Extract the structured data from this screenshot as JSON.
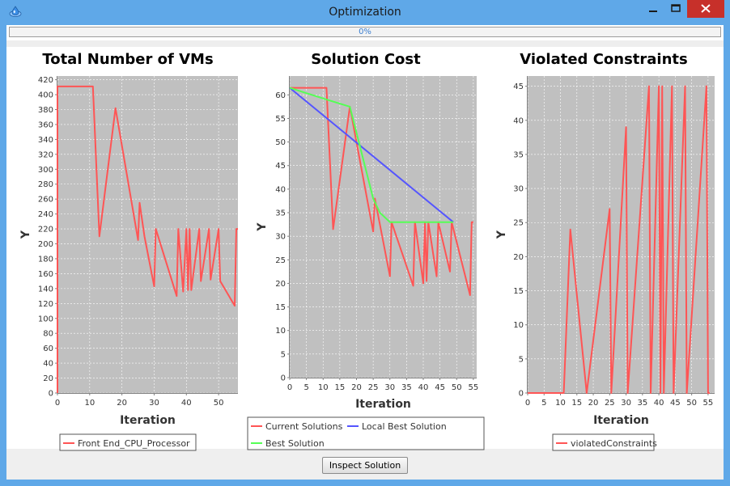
{
  "window": {
    "title": "Optimization",
    "icons": {
      "app": "app-droplet-icon",
      "minimize": "minimize-icon",
      "maximize": "maximize-icon",
      "close": "close-icon"
    },
    "colors": {
      "frame": "#5fa8e8",
      "close": "#c7302a",
      "plot_bg": "#c0c0c0"
    }
  },
  "progress": {
    "text": "0%",
    "value": 0
  },
  "footer": {
    "inspect_label": "Inspect Solution"
  },
  "chart_data": [
    {
      "id": "vms",
      "type": "line",
      "title": "Total Number of VMs",
      "xlabel": "Iteration",
      "ylabel": "Y",
      "xlim": [
        0,
        56
      ],
      "ylim": [
        0,
        425
      ],
      "xticks": [
        0,
        10,
        20,
        30,
        40,
        50
      ],
      "yticks": [
        0,
        20,
        40,
        60,
        80,
        100,
        120,
        140,
        160,
        180,
        200,
        220,
        240,
        260,
        280,
        300,
        320,
        340,
        360,
        380,
        400,
        420
      ],
      "grid": true,
      "legend_position": "bottom",
      "series": [
        {
          "name": "Front End_CPU_Processor",
          "color": "#ff5555",
          "x": [
            0,
            0,
            11,
            13,
            18,
            25,
            25.5,
            27,
            30,
            30.5,
            37,
            37.5,
            39,
            40,
            40.5,
            41,
            41.5,
            44,
            44.5,
            47,
            47.5,
            50,
            50.5,
            55,
            55.5,
            56
          ],
          "y": [
            0,
            411,
            411,
            210,
            382,
            205,
            255,
            210,
            143,
            220,
            130,
            220,
            136,
            220,
            138,
            220,
            138,
            220,
            150,
            220,
            152,
            220,
            150,
            117,
            220,
            220
          ]
        }
      ]
    },
    {
      "id": "cost",
      "type": "line",
      "title": "Solution Cost",
      "xlabel": "Iteration",
      "ylabel": "Y",
      "xlim": [
        0,
        56
      ],
      "ylim": [
        0,
        64
      ],
      "xticks": [
        0,
        5,
        10,
        15,
        20,
        25,
        30,
        35,
        40,
        45,
        50,
        55
      ],
      "yticks": [
        0,
        5,
        10,
        15,
        20,
        25,
        30,
        35,
        40,
        45,
        50,
        55,
        60
      ],
      "grid": true,
      "legend_position": "bottom",
      "series": [
        {
          "name": "Current Solutions",
          "color": "#ff5555",
          "x": [
            0,
            11,
            13,
            18,
            25,
            25.5,
            30,
            30.5,
            37,
            37.5,
            40,
            40.5,
            41,
            41.5,
            44,
            44.5,
            48,
            48.5,
            54,
            54.5,
            55
          ],
          "y": [
            61.5,
            61.5,
            31.5,
            57.5,
            31,
            38,
            21.5,
            33,
            19.5,
            33,
            20,
            33,
            20.5,
            33,
            21.5,
            33,
            22.5,
            33,
            17.5,
            33,
            33
          ]
        },
        {
          "name": "Local Best Solution",
          "color": "#5555ff",
          "x": [
            0,
            49
          ],
          "y": [
            61.5,
            33
          ]
        },
        {
          "name": "Best Solution",
          "color": "#55ff55",
          "x": [
            0,
            11,
            18,
            25,
            27,
            30,
            49
          ],
          "y": [
            61.5,
            59,
            57.5,
            38,
            35,
            33,
            33
          ]
        }
      ]
    },
    {
      "id": "violated",
      "type": "line",
      "title": "Violated Constraints",
      "xlabel": "Iteration",
      "ylabel": "Y",
      "xlim": [
        0,
        57
      ],
      "ylim": [
        0,
        46.5
      ],
      "xticks": [
        0,
        5,
        10,
        15,
        20,
        25,
        30,
        35,
        40,
        45,
        50,
        55
      ],
      "yticks": [
        0,
        5,
        10,
        15,
        20,
        25,
        30,
        35,
        40,
        45
      ],
      "grid": true,
      "legend_position": "bottom",
      "series": [
        {
          "name": "violatedConstraints",
          "color": "#ff5555",
          "x": [
            0,
            11,
            13,
            18,
            25,
            25.5,
            30,
            30.5,
            37,
            37.5,
            40,
            40.5,
            41,
            41.5,
            44,
            44.5,
            48,
            48.5,
            54.5,
            55,
            55.5
          ],
          "y": [
            0,
            0,
            24,
            0,
            27,
            0,
            39,
            0,
            45,
            0,
            45,
            0,
            45,
            0,
            45,
            0,
            45,
            0,
            45,
            0,
            0
          ]
        }
      ]
    }
  ]
}
